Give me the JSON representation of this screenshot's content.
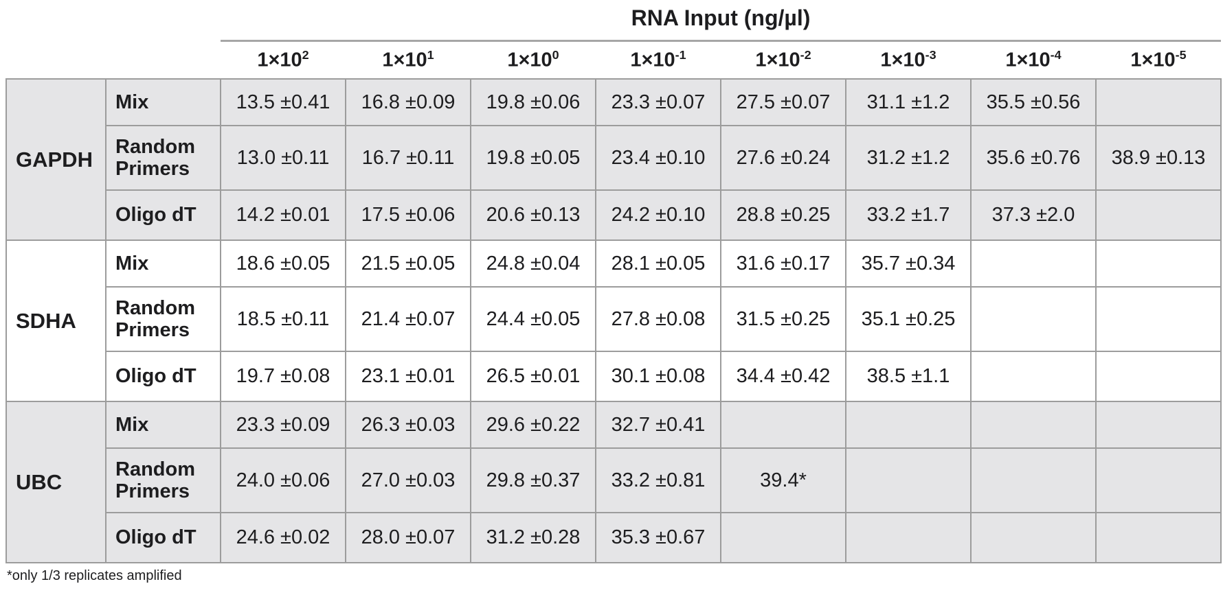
{
  "colors": {
    "shaded_row_bg": "#e5e5e7",
    "plain_row_bg": "#ffffff",
    "border": "#9c9c9c",
    "header_rule": "#a6a6a6",
    "text": "#1d1d1f"
  },
  "header": {
    "title": "RNA Input (ng/µl)",
    "columns": [
      {
        "base": "1×10",
        "exp": "2"
      },
      {
        "base": "1×10",
        "exp": "1"
      },
      {
        "base": "1×10",
        "exp": "0"
      },
      {
        "base": "1×10",
        "exp": "-1"
      },
      {
        "base": "1×10",
        "exp": "-2"
      },
      {
        "base": "1×10",
        "exp": "-3"
      },
      {
        "base": "1×10",
        "exp": "-4"
      },
      {
        "base": "1×10",
        "exp": "-5"
      }
    ]
  },
  "sections": [
    {
      "gene": "GAPDH",
      "rows": [
        {
          "method": "Mix",
          "values": [
            "13.5 ±0.41",
            "16.8 ±0.09",
            "19.8 ±0.06",
            "23.3 ±0.07",
            "27.5 ±0.07",
            "31.1 ±1.2",
            "35.5 ±0.56",
            ""
          ]
        },
        {
          "method": "Random Primers",
          "values": [
            "13.0 ±0.11",
            "16.7 ±0.11",
            "19.8 ±0.05",
            "23.4 ±0.10",
            "27.6 ±0.24",
            "31.2 ±1.2",
            "35.6 ±0.76",
            "38.9 ±0.13"
          ]
        },
        {
          "method": "Oligo dT",
          "values": [
            "14.2 ±0.01",
            "17.5 ±0.06",
            "20.6 ±0.13",
            "24.2 ±0.10",
            "28.8 ±0.25",
            "33.2 ±1.7",
            "37.3 ±2.0",
            ""
          ]
        }
      ]
    },
    {
      "gene": "SDHA",
      "rows": [
        {
          "method": "Mix",
          "values": [
            "18.6 ±0.05",
            "21.5 ±0.05",
            "24.8 ±0.04",
            "28.1 ±0.05",
            "31.6 ±0.17",
            "35.7 ±0.34",
            "",
            ""
          ]
        },
        {
          "method": "Random Primers",
          "values": [
            "18.5 ±0.11",
            "21.4 ±0.07",
            "24.4 ±0.05",
            "27.8 ±0.08",
            "31.5 ±0.25",
            "35.1 ±0.25",
            "",
            ""
          ]
        },
        {
          "method": "Oligo dT",
          "values": [
            "19.7 ±0.08",
            "23.1 ±0.01",
            "26.5 ±0.01",
            "30.1 ±0.08",
            "34.4 ±0.42",
            "38.5 ±1.1",
            "",
            ""
          ]
        }
      ]
    },
    {
      "gene": "UBC",
      "rows": [
        {
          "method": "Mix",
          "values": [
            "23.3 ±0.09",
            "26.3 ±0.03",
            "29.6 ±0.22",
            "32.7 ±0.41",
            "",
            "",
            "",
            ""
          ]
        },
        {
          "method": "Random Primers",
          "values": [
            "24.0 ±0.06",
            "27.0 ±0.03",
            "29.8 ±0.37",
            "33.2 ±0.81",
            "39.4*",
            "",
            "",
            ""
          ]
        },
        {
          "method": "Oligo dT",
          "values": [
            "24.6 ±0.02",
            "28.0 ±0.07",
            "31.2 ±0.28",
            "35.3 ±0.67",
            "",
            "",
            "",
            ""
          ]
        }
      ]
    }
  ],
  "footnote": "*only 1/3 replicates amplified",
  "chart_data": {
    "type": "table",
    "title": "RNA Input (ng/µl)",
    "columns": [
      "1×10^2",
      "1×10^1",
      "1×10^0",
      "1×10^-1",
      "1×10^-2",
      "1×10^-3",
      "1×10^-4",
      "1×10^-5"
    ],
    "row_groups": [
      "GAPDH",
      "SDHA",
      "UBC"
    ],
    "rows": [
      {
        "gene": "GAPDH",
        "method": "Mix",
        "values": [
          "13.5 ±0.41",
          "16.8 ±0.09",
          "19.8 ±0.06",
          "23.3 ±0.07",
          "27.5 ±0.07",
          "31.1 ±1.2",
          "35.5 ±0.56",
          ""
        ]
      },
      {
        "gene": "GAPDH",
        "method": "Random Primers",
        "values": [
          "13.0 ±0.11",
          "16.7 ±0.11",
          "19.8 ±0.05",
          "23.4 ±0.10",
          "27.6 ±0.24",
          "31.2 ±1.2",
          "35.6 ±0.76",
          "38.9 ±0.13"
        ]
      },
      {
        "gene": "GAPDH",
        "method": "Oligo dT",
        "values": [
          "14.2 ±0.01",
          "17.5 ±0.06",
          "20.6 ±0.13",
          "24.2 ±0.10",
          "28.8 ±0.25",
          "33.2 ±1.7",
          "37.3 ±2.0",
          ""
        ]
      },
      {
        "gene": "SDHA",
        "method": "Mix",
        "values": [
          "18.6 ±0.05",
          "21.5 ±0.05",
          "24.8 ±0.04",
          "28.1 ±0.05",
          "31.6 ±0.17",
          "35.7 ±0.34",
          "",
          ""
        ]
      },
      {
        "gene": "SDHA",
        "method": "Random Primers",
        "values": [
          "18.5 ±0.11",
          "21.4 ±0.07",
          "24.4 ±0.05",
          "27.8 ±0.08",
          "31.5 ±0.25",
          "35.1 ±0.25",
          "",
          ""
        ]
      },
      {
        "gene": "SDHA",
        "method": "Oligo dT",
        "values": [
          "19.7 ±0.08",
          "23.1 ±0.01",
          "26.5 ±0.01",
          "30.1 ±0.08",
          "34.4 ±0.42",
          "38.5 ±1.1",
          "",
          ""
        ]
      },
      {
        "gene": "UBC",
        "method": "Mix",
        "values": [
          "23.3 ±0.09",
          "26.3 ±0.03",
          "29.6 ±0.22",
          "32.7 ±0.41",
          "",
          "",
          "",
          ""
        ]
      },
      {
        "gene": "UBC",
        "method": "Random Primers",
        "values": [
          "24.0 ±0.06",
          "27.0 ±0.03",
          "29.8 ±0.37",
          "33.2 ±0.81",
          "39.4*",
          "",
          "",
          ""
        ]
      },
      {
        "gene": "UBC",
        "method": "Oligo dT",
        "values": [
          "24.6 ±0.02",
          "28.0 ±0.07",
          "31.2 ±0.28",
          "35.3 ±0.67",
          "",
          "",
          "",
          ""
        ]
      }
    ],
    "footnote": "*only 1/3 replicates amplified",
    "layout_hints": {
      "units": "Cq mean ± SD",
      "striped_by_gene_group": true
    }
  }
}
